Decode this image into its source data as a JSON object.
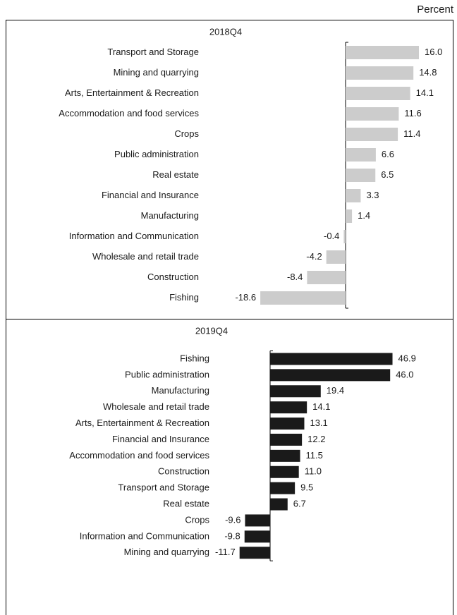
{
  "unit": "Percent",
  "chart_data": [
    {
      "type": "barh",
      "title": "2018Q4",
      "color": "#cccccc",
      "categories": [
        "Transport and Storage",
        "Mining and quarrying",
        "Arts, Entertainment & Recreation",
        "Accommodation and food services",
        "Crops",
        "Public administration",
        "Real estate",
        "Financial and Insurance",
        "Manufacturing",
        "Information and Communication",
        "Wholesale and retail trade",
        "Construction",
        "Fishing"
      ],
      "values": [
        16.0,
        14.8,
        14.1,
        11.6,
        11.4,
        6.6,
        6.5,
        3.3,
        1.4,
        -0.4,
        -4.2,
        -8.4,
        -18.6
      ],
      "value_labels": [
        "16.0",
        "14.8",
        "14.1",
        "11.6",
        "11.4",
        "6.6",
        "6.5",
        "3.3",
        "1.4",
        "-0.4",
        "-4.2",
        "-8.4",
        "-18.6"
      ],
      "xlim": [
        -20,
        18
      ]
    },
    {
      "type": "barh",
      "title": "2019Q4",
      "color": "#1a1a1a",
      "categories": [
        "Fishing",
        "Public administration",
        "Manufacturing",
        "Wholesale and retail trade",
        "Arts, Entertainment & Recreation",
        "Financial and Insurance",
        "Accommodation and food services",
        "Construction",
        "Transport and Storage",
        "Real estate",
        "Crops",
        "Information and Communication",
        "Mining and quarrying"
      ],
      "values": [
        46.9,
        46.0,
        19.4,
        14.1,
        13.1,
        12.2,
        11.5,
        11.0,
        9.5,
        6.7,
        -9.6,
        -9.8,
        -11.7
      ],
      "value_labels": [
        "46.9",
        "46.0",
        "19.4",
        "14.1",
        "13.1",
        "12.2",
        "11.5",
        "11.0",
        "9.5",
        "6.7",
        "-9.6",
        "-9.8",
        "-11.7"
      ],
      "xlim": [
        -15,
        50
      ]
    }
  ]
}
